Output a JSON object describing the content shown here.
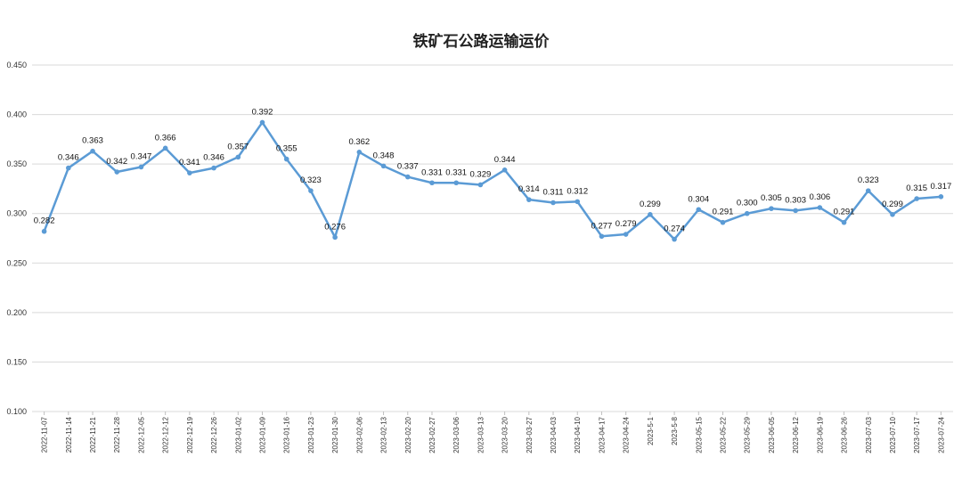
{
  "chart_data": {
    "type": "line",
    "title": "铁矿石公路运输运价",
    "xlabel": "",
    "ylabel": "",
    "ylim": [
      0.1,
      0.45
    ],
    "yticks": [
      "0.100",
      "0.150",
      "0.200",
      "0.250",
      "0.300",
      "0.350",
      "0.400",
      "0.450"
    ],
    "grid": true,
    "legend": "none",
    "line_color": "#5b9bd5",
    "categories": [
      "2022-11-07",
      "2022-11-14",
      "2022-11-21",
      "2022-11-28",
      "2022-12-05",
      "2022-12-12",
      "2022-12-19",
      "2022-12-26",
      "2023-01-02",
      "2023-01-09",
      "2023-01-16",
      "2023-01-23",
      "2023-01-30",
      "2023-02-06",
      "2023-02-13",
      "2023-02-20",
      "2023-02-27",
      "2023-03-06",
      "2023-03-13",
      "2023-03-20",
      "2023-03-27",
      "2023-04-03",
      "2023-04-10",
      "2023-04-17",
      "2023-04-24",
      "2023-5-1",
      "2023-5-8",
      "2023-05-15",
      "2023-05-22",
      "2023-05-29",
      "2023-06-05",
      "2023-06-12",
      "2023-06-19",
      "2023-06-26",
      "2023-07-03",
      "2023-07-10",
      "2023-07-17",
      "2023-07-24"
    ],
    "series": [
      {
        "values": [
          0.282,
          0.346,
          0.363,
          0.342,
          0.347,
          0.366,
          0.341,
          0.346,
          0.357,
          0.392,
          0.355,
          0.323,
          0.276,
          0.362,
          0.348,
          0.337,
          0.331,
          0.331,
          0.329,
          0.344,
          0.314,
          0.311,
          0.312,
          0.277,
          0.279,
          0.299,
          0.274,
          0.304,
          0.291,
          0.3,
          0.305,
          0.303,
          0.306,
          0.291,
          0.323,
          0.299,
          0.315,
          0.317
        ],
        "labels": [
          "0.282",
          "0.346",
          "0.363",
          "0.342",
          "0.347",
          "0.366",
          "0.341",
          "0.346",
          "0.357",
          "0.392",
          "0.355",
          "0.323",
          "0.276",
          "0.362",
          "0.348",
          "0.337",
          "0.331",
          "0.331",
          "0.329",
          "0.344",
          "0.314",
          "0.311",
          "0.312",
          "0.277",
          "0.279",
          "0.299",
          "0.274",
          "0.304",
          "0.291",
          "0.300",
          "0.305",
          "0.303",
          "0.306",
          "0.291",
          "0.323",
          "0.299",
          "0.315",
          "0.317"
        ]
      }
    ]
  }
}
